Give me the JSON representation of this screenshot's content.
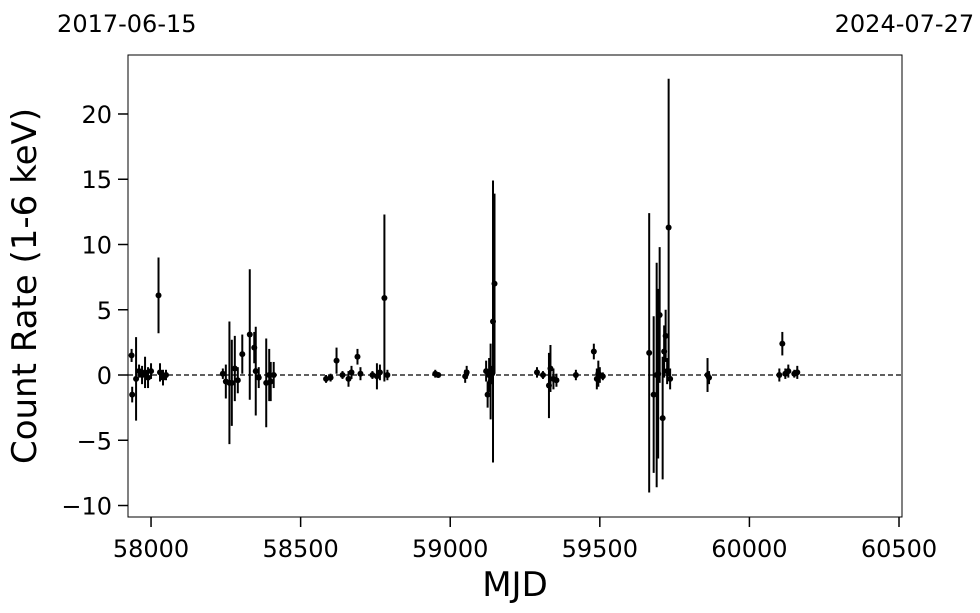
{
  "chart_data": {
    "type": "errorbar-scatter",
    "xlabel": "MJD",
    "ylabel": "Count Rate (1-6 keV)",
    "xlim": [
      57923,
      60510
    ],
    "ylim": [
      -10.88,
      24.52
    ],
    "xticks": [
      58000,
      58500,
      59000,
      59500,
      60000,
      60500
    ],
    "yticks": [
      {
        "value": -10,
        "label": "−10"
      },
      {
        "value": -5,
        "label": "−5"
      },
      0,
      5,
      10,
      15,
      20
    ],
    "x2ticks": [
      {
        "value": 57919,
        "label": "2017-06-15"
      },
      {
        "value": 60518,
        "label": "2024-07-27"
      }
    ],
    "reference_line": 0,
    "color": "#000000",
    "series": [
      {
        "name": "Count Rate",
        "x": [
          57935,
          57937,
          57950,
          57960,
          57970,
          57980,
          57990,
          58000,
          58025,
          58030,
          58040,
          58050,
          58240,
          58250,
          58262,
          58270,
          58280,
          58290,
          58305,
          58330,
          58345,
          58350,
          58360,
          58385,
          58395,
          58400,
          58410,
          58585,
          58600,
          58620,
          58640,
          58660,
          58670,
          58690,
          58700,
          58740,
          58755,
          58765,
          58780,
          58790,
          58950,
          58960,
          59050,
          59055,
          59120,
          59125,
          59130,
          59135,
          59140,
          59143,
          59148,
          59290,
          59310,
          59330,
          59335,
          59345,
          59355,
          59420,
          59480,
          59490,
          59495,
          59500,
          59510,
          59665,
          59680,
          59690,
          59695,
          59700,
          59710,
          59715,
          59720,
          59725,
          59730,
          59735,
          59860,
          59865,
          60100,
          60110,
          60120,
          60130,
          60150,
          60160
        ],
        "values": [
          1.5,
          -1.5,
          -0.3,
          0.3,
          0.0,
          0.2,
          -0.2,
          0.3,
          6.1,
          0.2,
          -0.2,
          0.0,
          0.1,
          -0.5,
          -0.6,
          -0.6,
          0.5,
          -0.4,
          1.6,
          3.1,
          2.1,
          0.3,
          -0.2,
          -0.6,
          0.0,
          -0.5,
          0.0,
          -0.3,
          -0.2,
          1.1,
          0.0,
          -0.3,
          0.2,
          1.4,
          0.1,
          0.0,
          -0.1,
          0.2,
          5.9,
          0.0,
          0.1,
          0.0,
          -0.1,
          0.2,
          0.3,
          -1.5,
          0.0,
          -0.5,
          0.1,
          4.1,
          7.0,
          0.2,
          0.0,
          -0.8,
          0.5,
          -0.3,
          -0.4,
          0.0,
          1.8,
          -0.3,
          0.1,
          0.0,
          -0.1,
          1.7,
          -1.5,
          0.0,
          0.1,
          4.6,
          -3.3,
          1.8,
          3.0,
          0.3,
          11.3,
          -0.3,
          0.0,
          -0.2,
          0.0,
          2.4,
          0.1,
          0.3,
          0.1,
          0.2
        ],
        "errors": [
          0.5,
          0.6,
          3.2,
          0.5,
          0.7,
          1.2,
          0.8,
          0.6,
          2.9,
          0.7,
          0.6,
          0.4,
          0.4,
          1.3,
          4.7,
          3.3,
          2.5,
          1.0,
          1.5,
          5.0,
          1.2,
          3.4,
          0.8,
          3.4,
          2.0,
          1.5,
          1.0,
          0.3,
          0.3,
          1.0,
          0.3,
          0.6,
          0.5,
          0.6,
          0.5,
          0.3,
          1.0,
          0.6,
          6.4,
          0.4,
          0.3,
          0.2,
          0.5,
          0.5,
          0.8,
          1.0,
          1.3,
          2.9,
          0.6,
          10.8,
          6.9,
          0.4,
          0.3,
          2.5,
          1.8,
          0.8,
          0.5,
          0.4,
          0.6,
          0.8,
          1.0,
          0.6,
          0.3,
          10.7,
          6.0,
          8.6,
          6.5,
          5.2,
          4.7,
          2.0,
          2.0,
          1.0,
          11.4,
          0.8,
          1.3,
          0.5,
          0.5,
          0.9,
          0.4,
          0.5,
          0.3,
          0.5
        ]
      }
    ]
  }
}
